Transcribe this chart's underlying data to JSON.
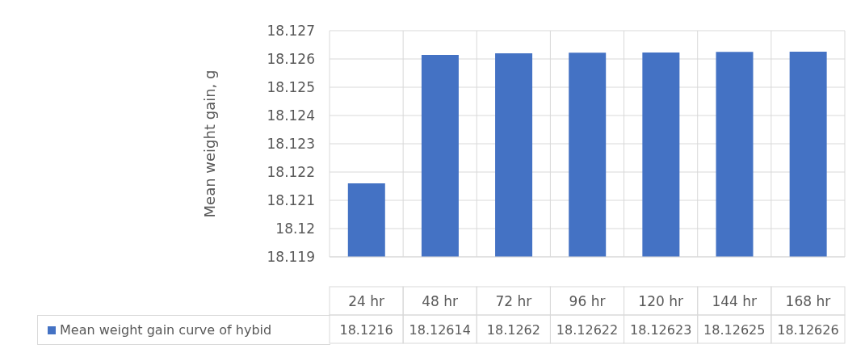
{
  "chart_data": {
    "type": "bar",
    "ylabel": "Mean weight gain, g",
    "categories": [
      "24 hr",
      "48 hr",
      "72 hr",
      "96 hr",
      "120 hr",
      "144 hr",
      "168 hr"
    ],
    "series": [
      {
        "name": "Mean weight gain curve of hybid",
        "color": "#4472c4",
        "values": [
          18.1216,
          18.12614,
          18.1262,
          18.12622,
          18.12623,
          18.12625,
          18.12626
        ]
      }
    ],
    "ylim": [
      18.119,
      18.127
    ],
    "yticks": [
      18.119,
      18.12,
      18.121,
      18.122,
      18.123,
      18.124,
      18.125,
      18.126,
      18.127
    ],
    "grid": true,
    "legend": "bottom left",
    "data_labels": true
  }
}
